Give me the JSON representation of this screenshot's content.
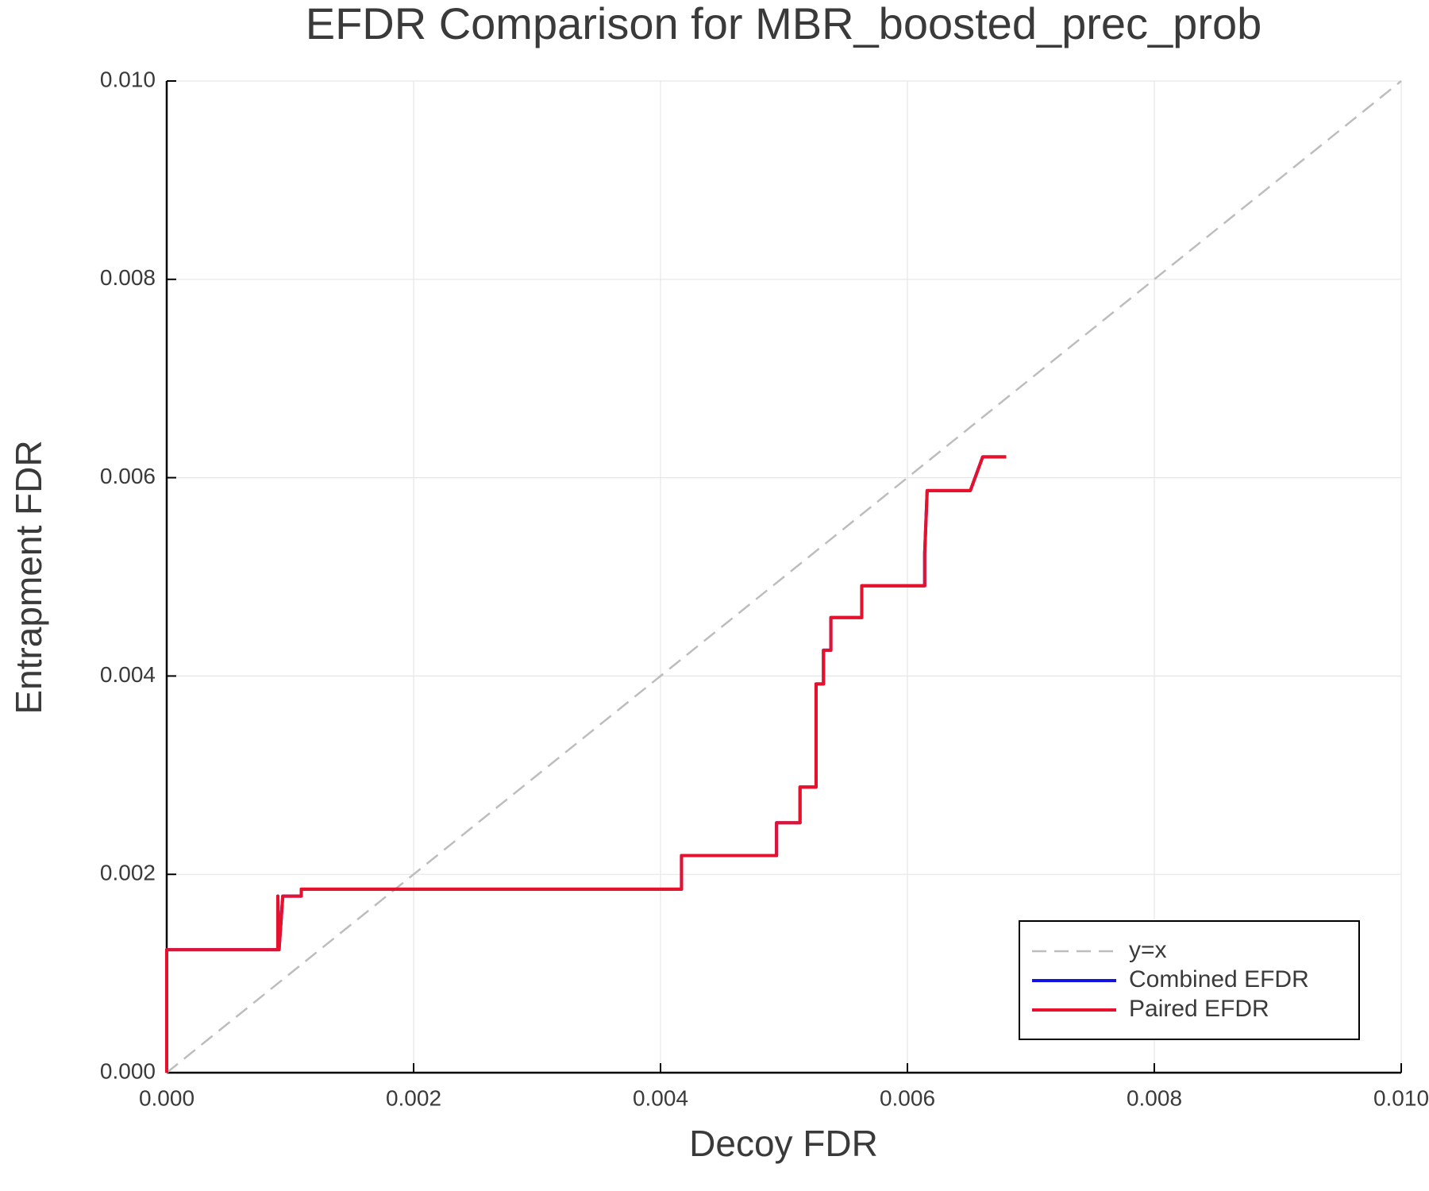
{
  "chart_data": {
    "type": "line",
    "title": "EFDR Comparison for MBR_boosted_prec_prob",
    "x_label": "Decoy FDR",
    "y_label": "Entrapment FDR",
    "xlim": [
      0,
      0.01
    ],
    "ylim": [
      0,
      0.01
    ],
    "xticks": [
      {
        "value": 0,
        "label": "0.000"
      },
      {
        "value": 0.002,
        "label": "0.002"
      },
      {
        "value": 0.004,
        "label": "0.004"
      },
      {
        "value": 0.006,
        "label": "0.006"
      },
      {
        "value": 0.008,
        "label": "0.008"
      },
      {
        "value": 0.01,
        "label": "0.010"
      }
    ],
    "yticks": [
      {
        "value": 0,
        "label": "0.000"
      },
      {
        "value": 0.002,
        "label": "0.002"
      },
      {
        "value": 0.004,
        "label": "0.004"
      },
      {
        "value": 0.006,
        "label": "0.006"
      },
      {
        "value": 0.008,
        "label": "0.008"
      },
      {
        "value": 0.01,
        "label": "0.010"
      }
    ],
    "grid": true,
    "legend": "bottom right",
    "series": [
      {
        "name": "y=x",
        "color": "#bdbdbd",
        "dashed": true,
        "x": [
          0,
          0.01
        ],
        "values": [
          0,
          0.01
        ]
      },
      {
        "name": "Combined EFDR",
        "color": "#1414e0",
        "x": [
          0,
          0,
          0.0009,
          0.0009,
          0.00091,
          0.00094,
          0.00109,
          0.00109,
          0.00417,
          0.00417,
          0.00494,
          0.00494,
          0.00513,
          0.00513,
          0.00526,
          0.00526,
          0.00532,
          0.00532,
          0.00538,
          0.00538,
          0.00563,
          0.00563,
          0.00614,
          0.00614,
          0.00616,
          0.00616,
          0.00651,
          0.00661,
          0.0068
        ],
        "values": [
          0,
          0.00124,
          0.00124,
          0.00178,
          0.00124,
          0.00178,
          0.00178,
          0.00185,
          0.00185,
          0.00219,
          0.00219,
          0.00252,
          0.00252,
          0.00288,
          0.00288,
          0.00392,
          0.00392,
          0.00426,
          0.00426,
          0.00459,
          0.00459,
          0.00491,
          0.00491,
          0.00524,
          0.00587,
          0.00587,
          0.00587,
          0.00621,
          0.00621
        ]
      },
      {
        "name": "Paired EFDR",
        "color": "#e5112d",
        "x": [
          0,
          0,
          0.0009,
          0.0009,
          0.00091,
          0.00094,
          0.00109,
          0.00109,
          0.00417,
          0.00417,
          0.00494,
          0.00494,
          0.00513,
          0.00513,
          0.00526,
          0.00526,
          0.00532,
          0.00532,
          0.00538,
          0.00538,
          0.00563,
          0.00563,
          0.00614,
          0.00614,
          0.00616,
          0.00616,
          0.00651,
          0.00661,
          0.0068
        ],
        "values": [
          0,
          0.00124,
          0.00124,
          0.00178,
          0.00124,
          0.00178,
          0.00178,
          0.00185,
          0.00185,
          0.00219,
          0.00219,
          0.00252,
          0.00252,
          0.00288,
          0.00288,
          0.00392,
          0.00392,
          0.00426,
          0.00426,
          0.00459,
          0.00459,
          0.00491,
          0.00491,
          0.00524,
          0.00587,
          0.00587,
          0.00587,
          0.00621,
          0.00621
        ]
      }
    ]
  }
}
